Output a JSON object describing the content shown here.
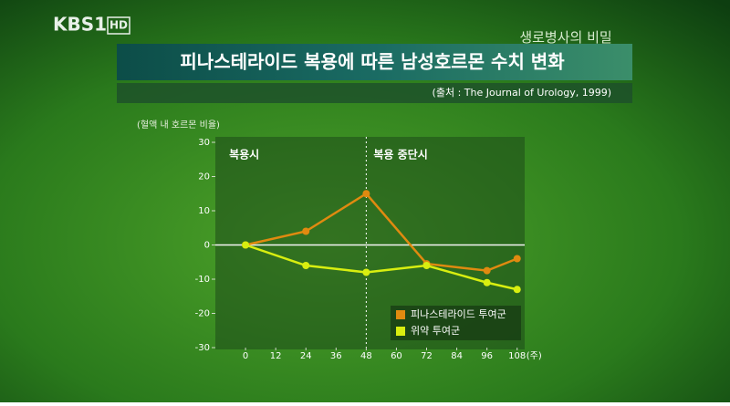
{
  "header": {
    "logo": "KBS1",
    "logo_badge": "HD",
    "program": "생로병사의 비밀",
    "title": "피나스테라이드 복용에 따른 남성호르몬 수치 변화",
    "source": "(출처 : The Journal of Urology, 1999)"
  },
  "chart_data": {
    "type": "line",
    "y_label": "(혈액 내 호르몬 비율)",
    "x_unit": "(주)",
    "x": [
      0,
      24,
      48,
      72,
      96,
      108
    ],
    "series": [
      {
        "name": "피나스테라이드 투여군",
        "color": "#e08a10",
        "values": [
          0,
          4,
          15,
          -5.5,
          -7.5,
          -4
        ]
      },
      {
        "name": "위약 투여군",
        "color": "#d8ee10",
        "values": [
          0,
          -6,
          -8,
          -6,
          -11,
          -13
        ]
      }
    ],
    "xlim": [
      -12,
      111
    ],
    "xticks": [
      0,
      12,
      24,
      36,
      48,
      60,
      72,
      84,
      96,
      108
    ],
    "ylim": [
      -30,
      30
    ],
    "yticks": [
      -30,
      -20,
      -10,
      0,
      10,
      20,
      30
    ],
    "annotations": [
      {
        "text": "복용시",
        "x": 0
      },
      {
        "text": "복용 중단시",
        "x": 48
      }
    ],
    "divider_x": 48,
    "legend": "lower right"
  }
}
